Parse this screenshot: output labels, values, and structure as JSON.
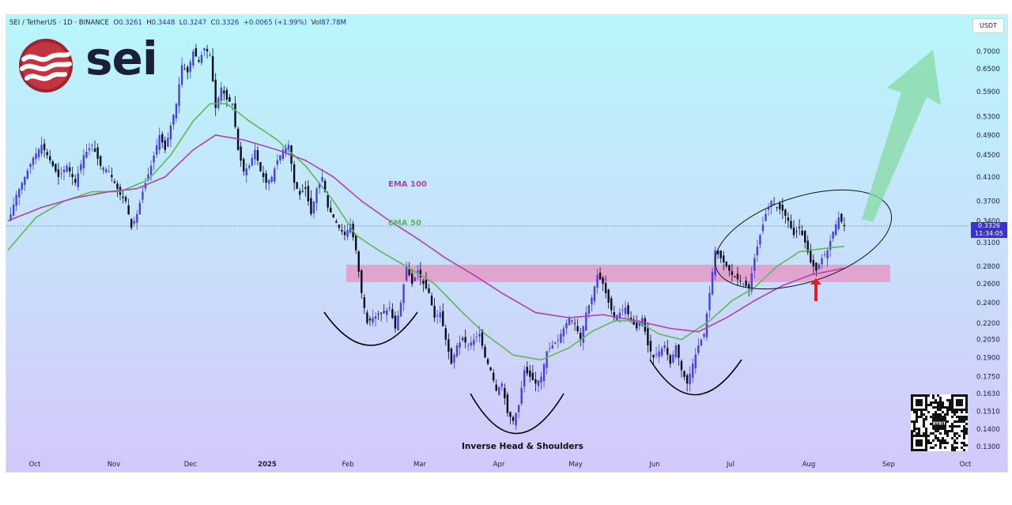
{
  "header": {
    "symbol": "SEI / TetherUS · 1D · BINANCE",
    "ohlc": {
      "o_label": "O",
      "o": "0.3261",
      "h_label": "H",
      "h": "0.3448",
      "l_label": "L",
      "l": "0.3247",
      "c_label": "C",
      "c": "0.3326",
      "change": "+0.0065 (+1.99%)",
      "vol_label": "Vol",
      "vol": "87.78M"
    },
    "quote_currency": "USDT"
  },
  "logo": {
    "word": "sei",
    "icon": "sei-wave-logo-icon"
  },
  "last_price": {
    "value": "0.3326",
    "countdown": "11:34:05"
  },
  "annotations": {
    "ema100": "EMA 100",
    "ema50": "EMA 50",
    "pattern": "Inverse Head & Shoulders"
  },
  "colors": {
    "up_candle": "#4a3fe0",
    "down_candle": "#0b0b1e",
    "ema50": "#5bb85b",
    "ema100": "#b13fb0",
    "zone": "#f07fb0",
    "arrow_up": "#85d9a3",
    "signal_arrow": "#e81b1b"
  },
  "qr_code": {
    "label": "BYBIT"
  },
  "chart_data": {
    "type": "candlestick",
    "title": "",
    "yscale": "log",
    "ylim": [
      0.127,
      0.75
    ],
    "y_ticks": [
      "0.7000",
      "0.6500",
      "0.5900",
      "0.5300",
      "0.4900",
      "0.4500",
      "0.4100",
      "0.3700",
      "0.3400",
      "0.3100",
      "0.2800",
      "0.2600",
      "0.2400",
      "0.2200",
      "0.2050",
      "0.1900",
      "0.1750",
      "0.1630",
      "0.1510",
      "0.1400",
      "0.1300"
    ],
    "x_ticks": [
      "Oct",
      "Nov",
      "Dec",
      "2025",
      "Feb",
      "Mar",
      "Apr",
      "May",
      "Jun",
      "Jul",
      "Aug",
      "Sep",
      "Oct"
    ],
    "close_path": [
      [
        0,
        0.335
      ],
      [
        3,
        0.38
      ],
      [
        6,
        0.41
      ],
      [
        9,
        0.445
      ],
      [
        12,
        0.47
      ],
      [
        15,
        0.44
      ],
      [
        18,
        0.41
      ],
      [
        21,
        0.43
      ],
      [
        24,
        0.4
      ],
      [
        27,
        0.45
      ],
      [
        30,
        0.47
      ],
      [
        33,
        0.43
      ],
      [
        36,
        0.42
      ],
      [
        40,
        0.38
      ],
      [
        42,
        0.37
      ],
      [
        44,
        0.33
      ],
      [
        46,
        0.35
      ],
      [
        48,
        0.385
      ],
      [
        51,
        0.43
      ],
      [
        54,
        0.49
      ],
      [
        56,
        0.46
      ],
      [
        58,
        0.51
      ],
      [
        60,
        0.56
      ],
      [
        62,
        0.66
      ],
      [
        64,
        0.64
      ],
      [
        66,
        0.7
      ],
      [
        68,
        0.67
      ],
      [
        70,
        0.71
      ],
      [
        72,
        0.69
      ],
      [
        74,
        0.55
      ],
      [
        76,
        0.6
      ],
      [
        78,
        0.57
      ],
      [
        80,
        0.56
      ],
      [
        82,
        0.46
      ],
      [
        84,
        0.42
      ],
      [
        86,
        0.43
      ],
      [
        88,
        0.46
      ],
      [
        90,
        0.42
      ],
      [
        92,
        0.4
      ],
      [
        94,
        0.41
      ],
      [
        96,
        0.44
      ],
      [
        98,
        0.46
      ],
      [
        100,
        0.47
      ],
      [
        102,
        0.4
      ],
      [
        104,
        0.38
      ],
      [
        106,
        0.39
      ],
      [
        108,
        0.35
      ],
      [
        110,
        0.39
      ],
      [
        112,
        0.41
      ],
      [
        114,
        0.36
      ],
      [
        116,
        0.345
      ],
      [
        118,
        0.33
      ],
      [
        120,
        0.32
      ],
      [
        122,
        0.335
      ],
      [
        124,
        0.3
      ],
      [
        126,
        0.25
      ],
      [
        128,
        0.22
      ],
      [
        130,
        0.225
      ],
      [
        132,
        0.228
      ],
      [
        134,
        0.23
      ],
      [
        136,
        0.235
      ],
      [
        138,
        0.215
      ],
      [
        140,
        0.24
      ],
      [
        142,
        0.28
      ],
      [
        144,
        0.26
      ],
      [
        146,
        0.275
      ],
      [
        148,
        0.26
      ],
      [
        150,
        0.25
      ],
      [
        152,
        0.225
      ],
      [
        154,
        0.23
      ],
      [
        156,
        0.205
      ],
      [
        158,
        0.185
      ],
      [
        160,
        0.2
      ],
      [
        162,
        0.205
      ],
      [
        164,
        0.2
      ],
      [
        166,
        0.205
      ],
      [
        168,
        0.21
      ],
      [
        170,
        0.19
      ],
      [
        172,
        0.18
      ],
      [
        174,
        0.165
      ],
      [
        176,
        0.17
      ],
      [
        178,
        0.15
      ],
      [
        180,
        0.145
      ],
      [
        182,
        0.155
      ],
      [
        184,
        0.18
      ],
      [
        186,
        0.175
      ],
      [
        188,
        0.17
      ],
      [
        190,
        0.175
      ],
      [
        192,
        0.195
      ],
      [
        194,
        0.2
      ],
      [
        196,
        0.205
      ],
      [
        198,
        0.215
      ],
      [
        200,
        0.225
      ],
      [
        202,
        0.22
      ],
      [
        204,
        0.205
      ],
      [
        206,
        0.23
      ],
      [
        208,
        0.245
      ],
      [
        210,
        0.27
      ],
      [
        212,
        0.26
      ],
      [
        214,
        0.24
      ],
      [
        216,
        0.225
      ],
      [
        218,
        0.23
      ],
      [
        220,
        0.235
      ],
      [
        222,
        0.222
      ],
      [
        224,
        0.215
      ],
      [
        226,
        0.225
      ],
      [
        228,
        0.2
      ],
      [
        230,
        0.19
      ],
      [
        232,
        0.195
      ],
      [
        234,
        0.2
      ],
      [
        236,
        0.185
      ],
      [
        238,
        0.2
      ],
      [
        240,
        0.18
      ],
      [
        242,
        0.17
      ],
      [
        244,
        0.185
      ],
      [
        246,
        0.2
      ],
      [
        248,
        0.21
      ],
      [
        250,
        0.25
      ],
      [
        252,
        0.3
      ],
      [
        254,
        0.29
      ],
      [
        256,
        0.28
      ],
      [
        258,
        0.27
      ],
      [
        260,
        0.265
      ],
      [
        262,
        0.26
      ],
      [
        264,
        0.255
      ],
      [
        266,
        0.29
      ],
      [
        268,
        0.32
      ],
      [
        270,
        0.35
      ],
      [
        272,
        0.37
      ],
      [
        274,
        0.36
      ],
      [
        276,
        0.355
      ],
      [
        278,
        0.34
      ],
      [
        280,
        0.32
      ],
      [
        282,
        0.33
      ],
      [
        284,
        0.31
      ],
      [
        286,
        0.285
      ],
      [
        288,
        0.275
      ],
      [
        290,
        0.29
      ],
      [
        292,
        0.3
      ],
      [
        294,
        0.325
      ],
      [
        296,
        0.345
      ],
      [
        298,
        0.3326
      ]
    ],
    "ema50_path": [
      [
        0,
        0.3
      ],
      [
        10,
        0.345
      ],
      [
        20,
        0.37
      ],
      [
        30,
        0.385
      ],
      [
        40,
        0.385
      ],
      [
        50,
        0.405
      ],
      [
        58,
        0.45
      ],
      [
        66,
        0.52
      ],
      [
        72,
        0.56
      ],
      [
        78,
        0.56
      ],
      [
        86,
        0.52
      ],
      [
        96,
        0.48
      ],
      [
        106,
        0.43
      ],
      [
        116,
        0.37
      ],
      [
        124,
        0.32
      ],
      [
        132,
        0.3
      ],
      [
        142,
        0.28
      ],
      [
        152,
        0.26
      ],
      [
        162,
        0.23
      ],
      [
        170,
        0.21
      ],
      [
        180,
        0.192
      ],
      [
        190,
        0.188
      ],
      [
        200,
        0.198
      ],
      [
        208,
        0.212
      ],
      [
        216,
        0.222
      ],
      [
        224,
        0.222
      ],
      [
        232,
        0.21
      ],
      [
        240,
        0.205
      ],
      [
        250,
        0.222
      ],
      [
        258,
        0.242
      ],
      [
        266,
        0.256
      ],
      [
        274,
        0.28
      ],
      [
        282,
        0.298
      ],
      [
        290,
        0.302
      ],
      [
        298,
        0.305
      ]
    ],
    "ema100_path": [
      [
        0,
        0.34
      ],
      [
        12,
        0.36
      ],
      [
        24,
        0.375
      ],
      [
        36,
        0.385
      ],
      [
        46,
        0.39
      ],
      [
        56,
        0.41
      ],
      [
        66,
        0.46
      ],
      [
        74,
        0.49
      ],
      [
        84,
        0.48
      ],
      [
        96,
        0.46
      ],
      [
        106,
        0.44
      ],
      [
        116,
        0.41
      ],
      [
        126,
        0.37
      ],
      [
        136,
        0.34
      ],
      [
        146,
        0.315
      ],
      [
        156,
        0.29
      ],
      [
        166,
        0.27
      ],
      [
        176,
        0.25
      ],
      [
        188,
        0.23
      ],
      [
        200,
        0.225
      ],
      [
        212,
        0.228
      ],
      [
        224,
        0.222
      ],
      [
        236,
        0.215
      ],
      [
        246,
        0.212
      ],
      [
        256,
        0.225
      ],
      [
        266,
        0.242
      ],
      [
        276,
        0.258
      ],
      [
        286,
        0.27
      ],
      [
        298,
        0.278
      ]
    ],
    "resistance_zone": [
      0.262,
      0.282
    ],
    "last_price_line": 0.3326,
    "series": [
      {
        "name": "EMA 50"
      },
      {
        "name": "EMA 100"
      }
    ]
  }
}
